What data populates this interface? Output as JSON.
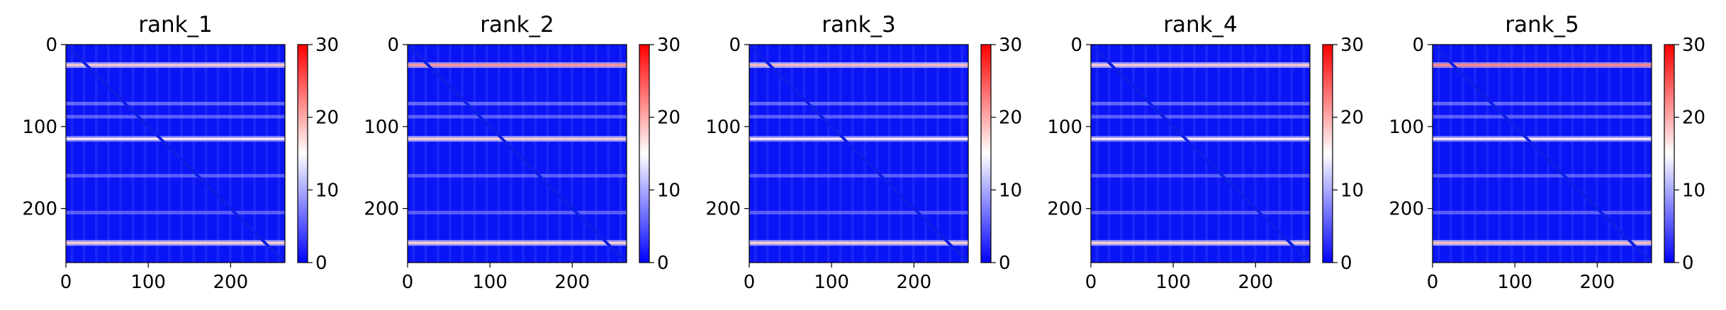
{
  "chart_data": [
    {
      "type": "heatmap",
      "title": "rank_1",
      "xticks": [
        "0",
        "100",
        "200"
      ],
      "yticks": [
        "0",
        "100",
        "200"
      ],
      "colorbar_ticks": [
        "0",
        "10",
        "20",
        "30"
      ],
      "xlim": [
        0,
        266
      ],
      "ylim": [
        266,
        0
      ],
      "clim": [
        0,
        30
      ],
      "colormap": "bwr",
      "hot_rows": [
        {
          "y": 25,
          "level": 18
        },
        {
          "y": 115,
          "level": 16
        },
        {
          "y": 242,
          "level": 18
        }
      ],
      "mid_rows": [
        {
          "y": 72,
          "level": 10
        },
        {
          "y": 88,
          "level": 9
        },
        {
          "y": 160,
          "level": 9
        },
        {
          "y": 205,
          "level": 9
        }
      ]
    },
    {
      "type": "heatmap",
      "title": "rank_2",
      "xticks": [
        "0",
        "100",
        "200"
      ],
      "yticks": [
        "0",
        "100",
        "200"
      ],
      "colorbar_ticks": [
        "0",
        "10",
        "20",
        "30"
      ],
      "xlim": [
        0,
        266
      ],
      "ylim": [
        266,
        0
      ],
      "clim": [
        0,
        30
      ],
      "colormap": "bwr",
      "hot_rows": [
        {
          "y": 25,
          "level": 21
        },
        {
          "y": 115,
          "level": 18
        },
        {
          "y": 242,
          "level": 18
        }
      ],
      "mid_rows": [
        {
          "y": 72,
          "level": 10
        },
        {
          "y": 88,
          "level": 9
        },
        {
          "y": 160,
          "level": 9
        },
        {
          "y": 205,
          "level": 9
        }
      ]
    },
    {
      "type": "heatmap",
      "title": "rank_3",
      "xticks": [
        "0",
        "100",
        "200"
      ],
      "yticks": [
        "0",
        "100",
        "200"
      ],
      "colorbar_ticks": [
        "0",
        "10",
        "20",
        "30"
      ],
      "xlim": [
        0,
        266
      ],
      "ylim": [
        266,
        0
      ],
      "clim": [
        0,
        30
      ],
      "colormap": "bwr",
      "hot_rows": [
        {
          "y": 25,
          "level": 19
        },
        {
          "y": 115,
          "level": 16
        },
        {
          "y": 242,
          "level": 18
        }
      ],
      "mid_rows": [
        {
          "y": 72,
          "level": 10
        },
        {
          "y": 88,
          "level": 9
        },
        {
          "y": 160,
          "level": 9
        },
        {
          "y": 205,
          "level": 9
        }
      ]
    },
    {
      "type": "heatmap",
      "title": "rank_4",
      "xticks": [
        "0",
        "100",
        "200"
      ],
      "yticks": [
        "0",
        "100",
        "200"
      ],
      "colorbar_ticks": [
        "0",
        "10",
        "20",
        "30"
      ],
      "xlim": [
        0,
        266
      ],
      "ylim": [
        266,
        0
      ],
      "clim": [
        0,
        30
      ],
      "colormap": "bwr",
      "hot_rows": [
        {
          "y": 25,
          "level": 18
        },
        {
          "y": 115,
          "level": 16
        },
        {
          "y": 242,
          "level": 18
        }
      ],
      "mid_rows": [
        {
          "y": 72,
          "level": 10
        },
        {
          "y": 88,
          "level": 9
        },
        {
          "y": 160,
          "level": 9
        },
        {
          "y": 205,
          "level": 9
        }
      ]
    },
    {
      "type": "heatmap",
      "title": "rank_5",
      "xticks": [
        "0",
        "100",
        "200"
      ],
      "yticks": [
        "0",
        "100",
        "200"
      ],
      "colorbar_ticks": [
        "0",
        "10",
        "20",
        "30"
      ],
      "xlim": [
        0,
        266
      ],
      "ylim": [
        266,
        0
      ],
      "clim": [
        0,
        30
      ],
      "colormap": "bwr",
      "hot_rows": [
        {
          "y": 25,
          "level": 22
        },
        {
          "y": 115,
          "level": 16
        },
        {
          "y": 242,
          "level": 19
        }
      ],
      "mid_rows": [
        {
          "y": 72,
          "level": 10
        },
        {
          "y": 88,
          "level": 9
        },
        {
          "y": 160,
          "level": 9
        },
        {
          "y": 205,
          "level": 9
        }
      ]
    }
  ],
  "colors": {
    "low": "#0000ff",
    "mid": "#ffffff",
    "high": "#ff0000",
    "diagonal": "#0d1ee6"
  }
}
